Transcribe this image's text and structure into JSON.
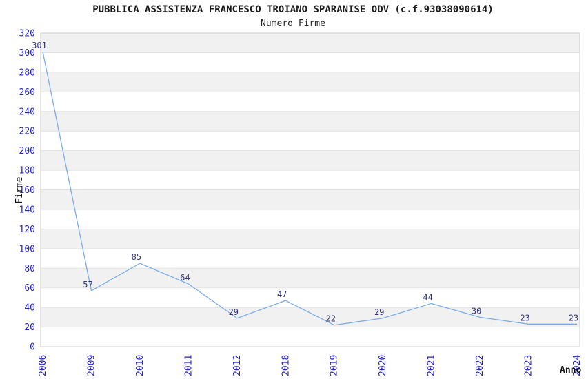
{
  "chart": {
    "title": "PUBBLICA ASSISTENZA FRANCESCO TROIANO SPARANISE ODV (c.f.93038090614)",
    "subtitle": "Numero Firme",
    "y_axis_title": "Firme",
    "x_axis_title": "Anno"
  },
  "chart_data": {
    "type": "line",
    "title": "PUBBLICA ASSISTENZA FRANCESCO TROIANO SPARANISE ODV (c.f.93038090614)",
    "subtitle": "Numero Firme",
    "xlabel": "Anno",
    "ylabel": "Firme",
    "categories": [
      "2006",
      "2009",
      "2010",
      "2011",
      "2012",
      "2018",
      "2019",
      "2020",
      "2021",
      "2022",
      "2023",
      "2024"
    ],
    "values": [
      301,
      57,
      85,
      64,
      29,
      47,
      22,
      29,
      44,
      30,
      23,
      23
    ],
    "point_labels": [
      "301",
      "57",
      "85",
      "64",
      "29",
      "47",
      "22",
      "29",
      "44",
      "30",
      "23",
      "23"
    ],
    "ylim": [
      0,
      320
    ],
    "ytick_step": 20,
    "yticks": [
      0,
      20,
      40,
      60,
      80,
      100,
      120,
      140,
      160,
      180,
      200,
      220,
      240,
      260,
      280,
      300,
      320
    ],
    "grid": "horizontal, alternating shaded bands",
    "legend": "none",
    "markers": "none",
    "x_tick_rotation": -90,
    "colors": {
      "line": "#7aade8",
      "axis_tick_label": "#2222cc",
      "value_label": "#333377",
      "band_shade": "#f1f1f1",
      "band_plain": "#ffffff",
      "gridline": "#e2e2e2",
      "plot_border": "#cccccc",
      "title_text": "#1a1a1a"
    }
  }
}
